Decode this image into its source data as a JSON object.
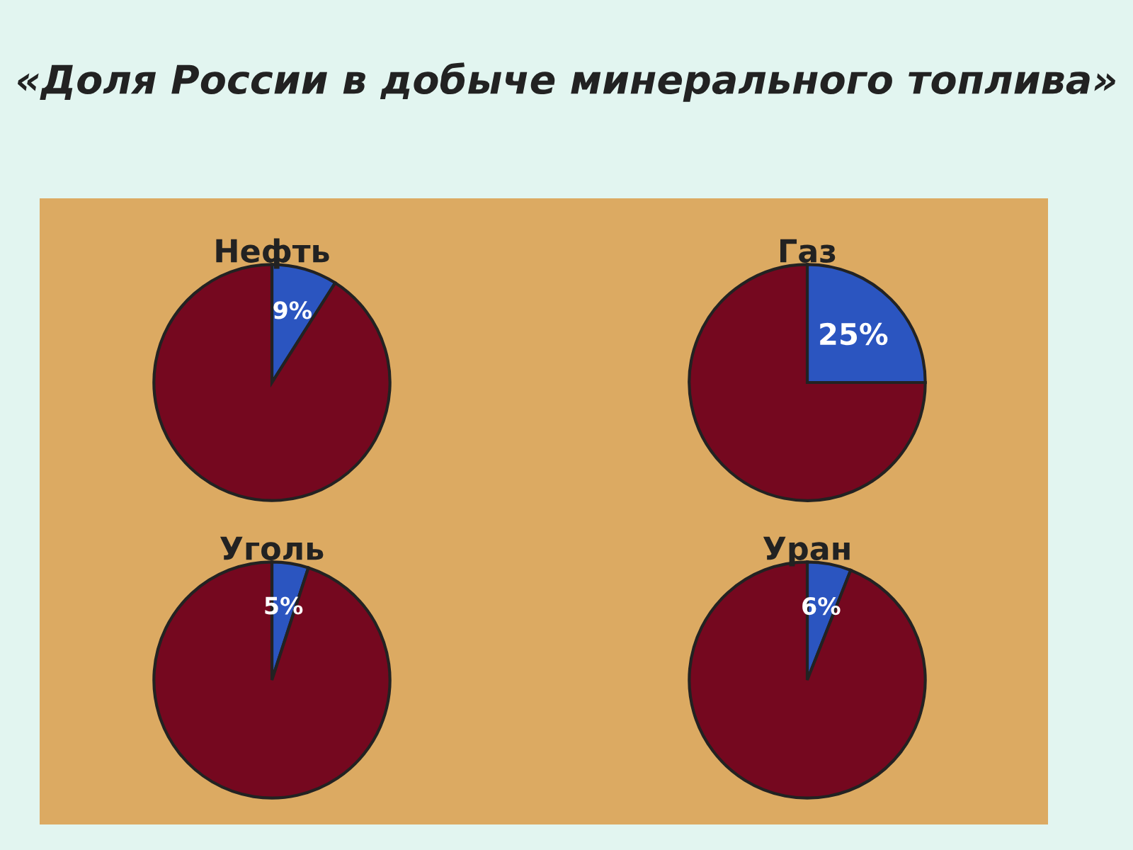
{
  "chart_data": [
    {
      "type": "pie",
      "title": "Нефть",
      "annotations": [
        "«Доля России в добыче минерального топлива»"
      ],
      "categories": [
        null,
        null
      ],
      "values": [
        9,
        91
      ],
      "colors": [
        "#2b55c0",
        "#75081f"
      ],
      "value_labels": [
        "9%",
        null
      ]
    },
    {
      "type": "pie",
      "title": "Газ",
      "categories": [
        null,
        null
      ],
      "values": [
        25,
        75
      ],
      "colors": [
        "#2b55c0",
        "#75081f"
      ],
      "value_labels": [
        "25%",
        null
      ]
    },
    {
      "type": "pie",
      "title": "Уголь",
      "categories": [
        null,
        null
      ],
      "values": [
        5,
        95
      ],
      "colors": [
        "#2b55c0",
        "#75081f"
      ],
      "value_labels": [
        "5%",
        null
      ]
    },
    {
      "type": "pie",
      "title": "Уран",
      "categories": [
        null,
        null
      ],
      "values": [
        6,
        94
      ],
      "colors": [
        "#2b55c0",
        "#75081f"
      ],
      "value_labels": [
        "6%",
        null
      ]
    }
  ]
}
